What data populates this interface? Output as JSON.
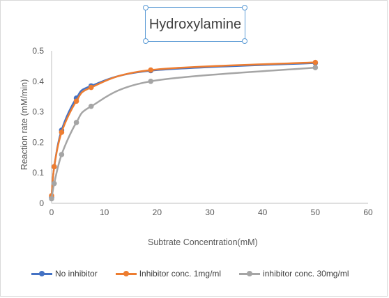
{
  "chart_data": {
    "type": "scatter",
    "title": "Hydroxylamine",
    "xlabel": "Subtrate Concentration(mM)",
    "ylabel": "Reaction rate (mM/min)",
    "xlim": [
      0,
      60
    ],
    "ylim": [
      0,
      0.5
    ],
    "xticks": [
      "0",
      "10",
      "20",
      "30",
      "40",
      "50",
      "60"
    ],
    "yticks": [
      "0",
      "0.1",
      "0.2",
      "0.3",
      "0.4",
      "0.5"
    ],
    "grid": false,
    "legend_position": "bottom",
    "series": [
      {
        "name": "No inhibitor",
        "color": "#4472c4",
        "x": [
          0,
          0.5,
          1.9,
          4.7,
          7.5,
          18.8,
          50
        ],
        "y": [
          0.02,
          0.12,
          0.24,
          0.345,
          0.385,
          0.435,
          0.46
        ]
      },
      {
        "name": "Inhibitor conc. 1mg/ml",
        "color": "#ed7d31",
        "x": [
          0,
          0.5,
          1.9,
          4.7,
          7.5,
          18.8,
          50
        ],
        "y": [
          0.025,
          0.12,
          0.233,
          0.335,
          0.38,
          0.437,
          0.462
        ]
      },
      {
        "name": "inhibitor conc. 30mg/ml",
        "color": "#a5a5a5",
        "x": [
          0,
          0.5,
          1.9,
          4.7,
          7.5,
          18.8,
          50
        ],
        "y": [
          0.015,
          0.065,
          0.16,
          0.265,
          0.318,
          0.4,
          0.445
        ]
      }
    ]
  }
}
